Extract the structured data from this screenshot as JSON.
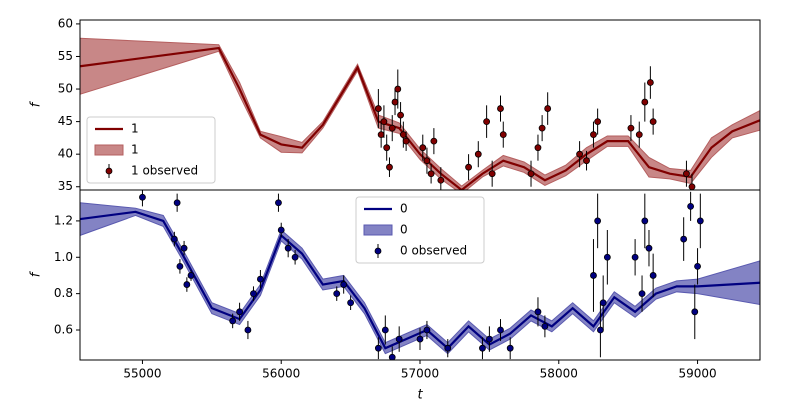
{
  "chart_data": [
    {
      "type": "gp",
      "y_label": "f",
      "xlim": [
        54550,
        59450
      ],
      "ylim": [
        34.5,
        60.6
      ],
      "yticks": [
        35,
        40,
        45,
        50,
        55,
        60
      ],
      "legend": "lower left",
      "series": [
        {
          "name": "1",
          "type": "line",
          "color": "#800000",
          "x": [
            54550,
            55550,
            55700,
            55850,
            56000,
            56150,
            56300,
            56550,
            56700,
            56850,
            57000,
            57150,
            57300,
            57450,
            57600,
            57750,
            57900,
            58050,
            58200,
            58350,
            58500,
            58650,
            58800,
            58950,
            59100,
            59250,
            59450
          ],
          "values": [
            53.5,
            56.3,
            50,
            43,
            41.5,
            41,
            44.5,
            53.3,
            45,
            44,
            40,
            37,
            34.5,
            37,
            39,
            38,
            36,
            37.5,
            40,
            42,
            42,
            38,
            37,
            36.5,
            41,
            43.5,
            45.2
          ]
        },
        {
          "name": "1",
          "type": "band",
          "color": "#b55f5f",
          "x": [
            54550,
            55550,
            55700,
            55850,
            56000,
            56150,
            56300,
            56550,
            56700,
            56850,
            57000,
            57150,
            57300,
            57450,
            57600,
            57750,
            57900,
            58050,
            58200,
            58350,
            58500,
            58650,
            58800,
            58950,
            59100,
            59250,
            59450
          ],
          "lower": [
            49.2,
            55.8,
            49,
            42.5,
            40.3,
            40.2,
            44,
            52.8,
            44,
            43.2,
            39.2,
            36.2,
            33.9,
            36.5,
            38.2,
            37.2,
            35.2,
            36.7,
            39,
            41.2,
            41.2,
            36.5,
            36.2,
            35.5,
            39.5,
            42.5,
            43.7
          ],
          "upper": [
            57.8,
            56.8,
            51,
            43.5,
            42.7,
            41.8,
            45,
            53.8,
            46,
            44.8,
            40.8,
            37.8,
            35.1,
            37.5,
            39.8,
            38.8,
            36.8,
            38.3,
            41,
            42.8,
            42.8,
            39.5,
            37.8,
            37.5,
            42.5,
            44.5,
            46.7
          ]
        },
        {
          "name": "1 observed",
          "type": "errorbar",
          "color": "#800000",
          "x": [
            56700,
            56720,
            56740,
            56760,
            56780,
            56800,
            56820,
            56840,
            56860,
            56880,
            56900,
            57020,
            57050,
            57080,
            57100,
            57150,
            57350,
            57420,
            57480,
            57520,
            57580,
            57600,
            57800,
            57850,
            57880,
            57920,
            58150,
            58200,
            58250,
            58280,
            58520,
            58580,
            58620,
            58660,
            58680,
            58920,
            58960
          ],
          "values": [
            47,
            43,
            45,
            41,
            38,
            44,
            48,
            50,
            46,
            43,
            42,
            41,
            39,
            37,
            42,
            36,
            38,
            40,
            45,
            37,
            47,
            43,
            37,
            41,
            44,
            47,
            40,
            39,
            43,
            45,
            44,
            43,
            48,
            51,
            45,
            37,
            35
          ],
          "errors": [
            3,
            2,
            2.5,
            2,
            1.5,
            2,
            2,
            3,
            2,
            2,
            1.5,
            2,
            2,
            1.5,
            2,
            2,
            2,
            2,
            2.5,
            2,
            2,
            2,
            2,
            2,
            2,
            2.5,
            2,
            1.5,
            2,
            2,
            2,
            2,
            3,
            2.5,
            2,
            2,
            2
          ]
        }
      ]
    },
    {
      "type": "gp",
      "y_label": "f",
      "x_label": "t",
      "xlim": [
        54550,
        59450
      ],
      "xticks": [
        55000,
        56000,
        57000,
        58000,
        59000
      ],
      "ylim": [
        0.435,
        1.37
      ],
      "yticks": [
        0.6,
        0.8,
        {
          "value": 1,
          "label": "1.0"
        },
        1.2
      ],
      "legend": "upper center",
      "series": [
        {
          "name": "0",
          "type": "line",
          "color": "#000080",
          "x": [
            54550,
            54950,
            55150,
            55300,
            55500,
            55700,
            55850,
            56000,
            56150,
            56300,
            56450,
            56600,
            56750,
            56900,
            57050,
            57200,
            57350,
            57500,
            57650,
            57800,
            57950,
            58100,
            58250,
            58400,
            58550,
            58700,
            58850,
            59000,
            59450
          ],
          "values": [
            1.21,
            1.25,
            1.2,
            1.0,
            0.72,
            0.66,
            0.82,
            1.12,
            1.02,
            0.85,
            0.87,
            0.72,
            0.5,
            0.55,
            0.6,
            0.5,
            0.62,
            0.52,
            0.58,
            0.68,
            0.62,
            0.72,
            0.62,
            0.78,
            0.7,
            0.8,
            0.84,
            0.84,
            0.86
          ]
        },
        {
          "name": "0",
          "type": "band",
          "color": "#5a5ab0",
          "x": [
            54550,
            54950,
            55150,
            55300,
            55500,
            55700,
            55850,
            56000,
            56150,
            56300,
            56450,
            56600,
            56750,
            56900,
            57050,
            57200,
            57350,
            57500,
            57650,
            57800,
            57950,
            58100,
            58250,
            58400,
            58550,
            58700,
            58850,
            59000,
            59450
          ],
          "lower": [
            1.12,
            1.23,
            1.17,
            0.97,
            0.69,
            0.63,
            0.79,
            1.09,
            0.99,
            0.82,
            0.84,
            0.69,
            0.47,
            0.52,
            0.57,
            0.47,
            0.59,
            0.49,
            0.55,
            0.65,
            0.59,
            0.69,
            0.59,
            0.75,
            0.67,
            0.77,
            0.81,
            0.8,
            0.74
          ],
          "upper": [
            1.3,
            1.27,
            1.23,
            1.03,
            0.75,
            0.69,
            0.85,
            1.15,
            1.05,
            0.88,
            0.9,
            0.75,
            0.53,
            0.58,
            0.63,
            0.53,
            0.65,
            0.55,
            0.61,
            0.71,
            0.65,
            0.75,
            0.65,
            0.81,
            0.73,
            0.83,
            0.87,
            0.88,
            0.98
          ]
        },
        {
          "name": "0 observed",
          "type": "errorbar",
          "color": "#000080",
          "x": [
            55000,
            55230,
            55250,
            55270,
            55300,
            55320,
            55350,
            55650,
            55700,
            55760,
            55800,
            55850,
            55980,
            56000,
            56050,
            56100,
            56400,
            56450,
            56500,
            56700,
            56750,
            56800,
            56850,
            57000,
            57050,
            57200,
            57450,
            57500,
            57580,
            57650,
            57850,
            57900,
            58250,
            58280,
            58300,
            58320,
            58350,
            58550,
            58600,
            58620,
            58650,
            58680,
            58900,
            58950,
            58980,
            59000,
            59020
          ],
          "values": [
            1.33,
            1.1,
            1.3,
            0.95,
            1.05,
            0.85,
            0.9,
            0.65,
            0.7,
            0.6,
            0.8,
            0.88,
            1.3,
            1.15,
            1.05,
            1.0,
            0.8,
            0.85,
            0.75,
            0.5,
            0.6,
            0.45,
            0.55,
            0.55,
            0.6,
            0.5,
            0.5,
            0.55,
            0.6,
            0.5,
            0.7,
            0.62,
            0.9,
            1.2,
            0.6,
            0.75,
            1.0,
            1.0,
            0.8,
            1.2,
            1.05,
            0.9,
            1.1,
            1.28,
            0.7,
            0.95,
            1.2
          ],
          "errors": [
            0.05,
            0.04,
            0.05,
            0.04,
            0.04,
            0.04,
            0.03,
            0.04,
            0.05,
            0.05,
            0.04,
            0.05,
            0.05,
            0.04,
            0.05,
            0.04,
            0.04,
            0.05,
            0.04,
            0.06,
            0.08,
            0.06,
            0.07,
            0.06,
            0.05,
            0.05,
            0.06,
            0.07,
            0.06,
            0.06,
            0.08,
            0.06,
            0.2,
            0.15,
            0.15,
            0.15,
            0.15,
            0.1,
            0.1,
            0.15,
            0.1,
            0.12,
            0.12,
            0.08,
            0.15,
            0.1,
            0.15
          ]
        }
      ]
    }
  ]
}
